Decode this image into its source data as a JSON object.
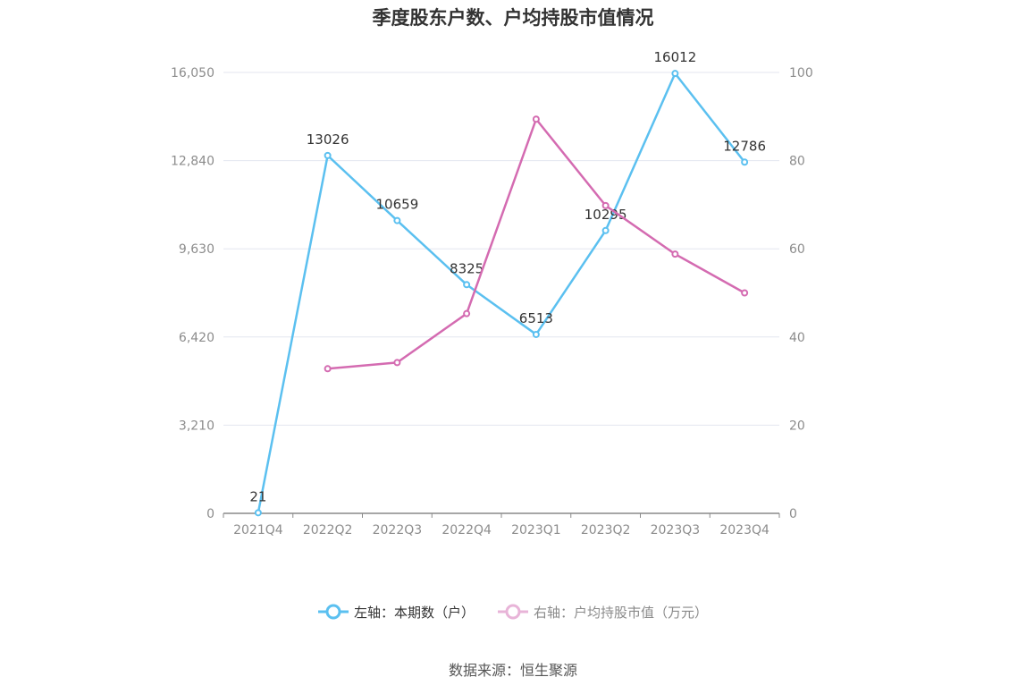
{
  "chart_data": {
    "type": "line",
    "title": "季度股东户数、户均持股市值情况",
    "categories": [
      "2021Q4",
      "2022Q2",
      "2022Q3",
      "2022Q4",
      "2023Q1",
      "2023Q2",
      "2023Q3",
      "2023Q4"
    ],
    "y_left": {
      "ticks": [
        "0",
        "3,210",
        "6,420",
        "9,630",
        "12,840",
        "16,050"
      ],
      "range": [
        0,
        16050
      ]
    },
    "y_right": {
      "ticks": [
        "0",
        "20",
        "40",
        "60",
        "80",
        "100"
      ],
      "range": [
        0,
        100
      ]
    },
    "series": [
      {
        "name": "左轴：本期数（户）",
        "axis": "left",
        "color": "#5bc0f0",
        "values": [
          21,
          13026,
          10659,
          8325,
          6513,
          10295,
          16012,
          12786
        ],
        "labels": [
          "21",
          "13026",
          "10659",
          "8325",
          "6513",
          "10295",
          "16012",
          "12786"
        ]
      },
      {
        "name": "右轴：户均持股市值（万元）",
        "axis": "right",
        "color": "#d46bb1",
        "values": [
          null,
          32.8,
          34.2,
          45.3,
          89.4,
          69.8,
          58.8,
          50.0
        ]
      }
    ],
    "grid": true,
    "legend_position": "bottom"
  },
  "legend": {
    "left_label": "左轴：本期数（户）",
    "right_label": "右轴：户均持股市值（万元）"
  },
  "source": "数据来源：恒生聚源"
}
